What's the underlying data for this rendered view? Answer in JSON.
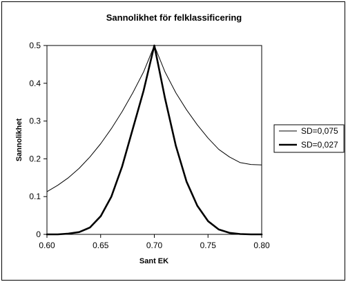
{
  "chart_data": {
    "type": "line",
    "title": "Sannolikhet för felklassificering",
    "xlabel": "Sant EK",
    "ylabel": "Sannolikhet",
    "xlim": [
      0.6,
      0.8
    ],
    "ylim": [
      0,
      0.5
    ],
    "x_ticks": [
      "0.60",
      "0.65",
      "0.70",
      "0.75",
      "0.80"
    ],
    "y_ticks": [
      "0",
      "0.1",
      "0.2",
      "0.3",
      "0.4",
      "0.5"
    ],
    "x_tick_values": [
      0.6,
      0.65,
      0.7,
      0.75,
      0.8
    ],
    "y_tick_values": [
      0,
      0.1,
      0.2,
      0.3,
      0.4,
      0.5
    ],
    "grid": false,
    "legend_position": "right",
    "series": [
      {
        "name": "SD=0,075",
        "color": "#000000",
        "line_weight": "thin",
        "x": [
          0.6,
          0.61,
          0.62,
          0.63,
          0.64,
          0.65,
          0.66,
          0.67,
          0.68,
          0.69,
          0.7,
          0.71,
          0.72,
          0.73,
          0.74,
          0.75,
          0.76,
          0.77,
          0.78,
          0.79,
          0.8
        ],
        "values": [
          0.113,
          0.13,
          0.15,
          0.175,
          0.205,
          0.24,
          0.28,
          0.325,
          0.375,
          0.43,
          0.5,
          0.43,
          0.375,
          0.33,
          0.29,
          0.255,
          0.225,
          0.205,
          0.19,
          0.185,
          0.184
        ]
      },
      {
        "name": "SD=0,027",
        "color": "#000000",
        "line_weight": "thick",
        "x": [
          0.6,
          0.61,
          0.62,
          0.63,
          0.64,
          0.65,
          0.66,
          0.67,
          0.68,
          0.69,
          0.7,
          0.71,
          0.72,
          0.73,
          0.74,
          0.75,
          0.76,
          0.77,
          0.78,
          0.79,
          0.8
        ],
        "values": [
          0.0,
          0.0,
          0.002,
          0.006,
          0.018,
          0.048,
          0.1,
          0.18,
          0.28,
          0.38,
          0.5,
          0.36,
          0.235,
          0.14,
          0.076,
          0.035,
          0.013,
          0.004,
          0.001,
          0.0,
          0.0
        ]
      }
    ]
  }
}
